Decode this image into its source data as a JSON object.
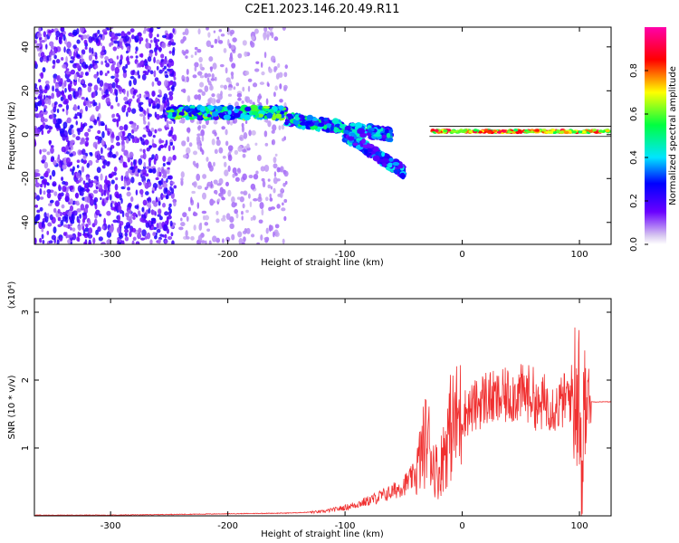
{
  "figure": {
    "title": "C2E1.2023.146.20.49.R11"
  },
  "chart_data": [
    {
      "type": "heatmap",
      "xlabel": "Height of straight line (km)",
      "ylabel": "Frequency (Hz)",
      "xlim": [
        -365,
        127
      ],
      "ylim": [
        -50,
        49
      ],
      "xticks": [
        -300,
        -200,
        -100,
        0,
        100
      ],
      "yticks": [
        -40,
        -20,
        0,
        20,
        40
      ],
      "grid": false,
      "colorbar": {
        "label": "Normalized spectral amplitude",
        "range": [
          0,
          1
        ],
        "ticks": [
          "0.0",
          "0.2",
          "0.4",
          "0.6",
          "0.8"
        ],
        "colormap": "rainbow",
        "stops": [
          "#d8c8f0",
          "#6a00ff",
          "#0000ff",
          "#00e5ff",
          "#00ff40",
          "#ffff00",
          "#ff0000",
          "#ff00aa"
        ]
      },
      "features": [
        {
          "x_range": [
            -365,
            -245
          ],
          "freq_range": [
            -50,
            49
          ],
          "amplitude": 0.1,
          "kind": "broadband noise"
        },
        {
          "x_range": [
            -240,
            -150
          ],
          "freq_range": [
            -50,
            49
          ],
          "amplitude": 0.03,
          "kind": "sparse noise"
        },
        {
          "x_range": [
            -250,
            -150
          ],
          "freq_center": 10,
          "amplitude": 0.35,
          "kind": "band"
        },
        {
          "x_range": [
            -150,
            -60
          ],
          "freq_start": 7,
          "freq_end": 0,
          "amplitude": 0.3,
          "kind": "band"
        },
        {
          "x_range": [
            -100,
            -50
          ],
          "freq_start": 0,
          "freq_end": -17,
          "amplitude": 0.25,
          "kind": "descending branch"
        },
        {
          "x_range": [
            -28,
            127
          ],
          "freq_center": 1.5,
          "amplitude": 0.9,
          "kind": "narrow tone"
        }
      ]
    },
    {
      "type": "line",
      "xlabel": "Height of straight line (km)",
      "ylabel": "SNR (10 * v/v)",
      "y_multiplier": "(x10⁴)",
      "xlim": [
        -365,
        127
      ],
      "ylim": [
        0,
        3.2
      ],
      "xticks": [
        -300,
        -200,
        -100,
        0,
        100
      ],
      "yticks": [
        1,
        2,
        3
      ],
      "grid": false,
      "color": "#f03030",
      "series": [
        {
          "x": [
            -365,
            -300,
            -250,
            -200,
            -150,
            -120,
            -100,
            -80,
            -60,
            -50,
            -40,
            -35,
            -30,
            -25,
            -20,
            -15,
            -10,
            -5,
            0,
            10,
            20,
            30,
            40,
            50,
            60,
            65,
            70,
            80,
            90,
            95,
            100,
            102,
            105,
            110,
            127
          ],
          "values": [
            0.01,
            0.01,
            0.02,
            0.03,
            0.04,
            0.06,
            0.12,
            0.22,
            0.35,
            0.45,
            0.6,
            0.9,
            1.2,
            0.8,
            0.6,
            1.0,
            1.3,
            1.4,
            1.5,
            1.6,
            1.75,
            1.7,
            1.78,
            1.8,
            1.8,
            1.55,
            1.7,
            1.6,
            1.75,
            1.85,
            1.7,
            0.3,
            1.9,
            1.68,
            1.68
          ]
        }
      ]
    }
  ]
}
